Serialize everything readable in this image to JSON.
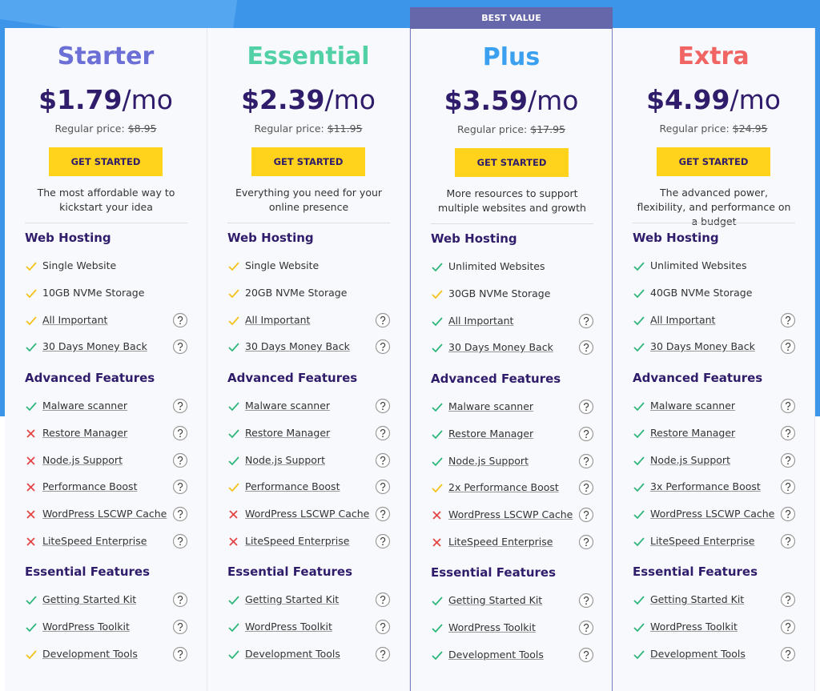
{
  "plans": [
    {
      "name": "Starter",
      "color": "#6b6fd6",
      "price": "$1.79",
      "unit": "/mo",
      "regular_label": "Regular price:",
      "regular_price": "$8.95",
      "button": "GET STARTED",
      "description": "The most affordable way to kickstart your idea",
      "sections": [
        {
          "title": "Web Hosting",
          "items": [
            {
              "text": "Single Website",
              "icon": "yellow-check",
              "help": false
            },
            {
              "text": "10GB NVMe Storage",
              "icon": "yellow-check",
              "help": false
            },
            {
              "text": "All Important",
              "icon": "yellow-check",
              "help": true
            },
            {
              "text": "30 Days Money Back",
              "icon": "green-check",
              "help": true
            }
          ]
        },
        {
          "title": "Advanced Features",
          "items": [
            {
              "text": "Malware scanner",
              "icon": "green-check",
              "help": true
            },
            {
              "text": "Restore Manager",
              "icon": "red-cross",
              "help": true
            },
            {
              "text": "Node.js Support",
              "icon": "red-cross",
              "help": true
            },
            {
              "text": "Performance Boost",
              "icon": "red-cross",
              "help": true
            },
            {
              "text": "WordPress LSCWP Cache",
              "icon": "red-cross",
              "help": true
            },
            {
              "text": "LiteSpeed Enterprise",
              "icon": "red-cross",
              "help": true
            }
          ]
        },
        {
          "title": "Essential Features",
          "items": [
            {
              "text": "Getting Started Kit",
              "icon": "green-check",
              "help": true
            },
            {
              "text": "WordPress Toolkit",
              "icon": "green-check",
              "help": true
            },
            {
              "text": "Development Tools",
              "icon": "yellow-check",
              "help": true
            }
          ]
        }
      ]
    },
    {
      "name": "Essential",
      "color": "#52d1a6",
      "price": "$2.39",
      "unit": "/mo",
      "regular_label": "Regular price:",
      "regular_price": "$11.95",
      "button": "GET STARTED",
      "description": "Everything you need for your online presence",
      "sections": [
        {
          "title": "Web Hosting",
          "items": [
            {
              "text": "Single Website",
              "icon": "yellow-check",
              "help": false
            },
            {
              "text": "20GB NVMe Storage",
              "icon": "yellow-check",
              "help": false
            },
            {
              "text": "All Important",
              "icon": "yellow-check",
              "help": true
            },
            {
              "text": "30 Days Money Back",
              "icon": "green-check",
              "help": true
            }
          ]
        },
        {
          "title": "Advanced Features",
          "items": [
            {
              "text": "Malware scanner",
              "icon": "green-check",
              "help": true
            },
            {
              "text": "Restore Manager",
              "icon": "green-check",
              "help": true
            },
            {
              "text": "Node.js Support",
              "icon": "green-check",
              "help": true
            },
            {
              "text": "Performance Boost",
              "icon": "yellow-check",
              "help": true
            },
            {
              "text": "WordPress LSCWP Cache",
              "icon": "red-cross",
              "help": true
            },
            {
              "text": "LiteSpeed Enterprise",
              "icon": "red-cross",
              "help": true
            }
          ]
        },
        {
          "title": "Essential Features",
          "items": [
            {
              "text": "Getting Started Kit",
              "icon": "green-check",
              "help": true
            },
            {
              "text": "WordPress Toolkit",
              "icon": "green-check",
              "help": true
            },
            {
              "text": "Development Tools",
              "icon": "green-check",
              "help": true
            }
          ]
        }
      ]
    },
    {
      "name": "Plus",
      "color": "#3ba0ef",
      "badge": "BEST VALUE",
      "price": "$3.59",
      "unit": "/mo",
      "regular_label": "Regular price:",
      "regular_price": "$17.95",
      "button": "GET STARTED",
      "description": "More resources to support multiple websites and growth",
      "sections": [
        {
          "title": "Web Hosting",
          "items": [
            {
              "text": "Unlimited Websites",
              "icon": "green-check",
              "help": false
            },
            {
              "text": "30GB NVMe Storage",
              "icon": "yellow-check",
              "help": false
            },
            {
              "text": "All Important",
              "icon": "green-check",
              "help": true
            },
            {
              "text": "30 Days Money Back",
              "icon": "green-check",
              "help": true
            }
          ]
        },
        {
          "title": "Advanced Features",
          "items": [
            {
              "text": "Malware scanner",
              "icon": "green-check",
              "help": true
            },
            {
              "text": "Restore Manager",
              "icon": "green-check",
              "help": true
            },
            {
              "text": "Node.js Support",
              "icon": "green-check",
              "help": true
            },
            {
              "text": "2x Performance Boost",
              "icon": "yellow-check",
              "help": true
            },
            {
              "text": "WordPress LSCWP Cache",
              "icon": "red-cross",
              "help": true
            },
            {
              "text": "LiteSpeed Enterprise",
              "icon": "red-cross",
              "help": true
            }
          ]
        },
        {
          "title": "Essential Features",
          "items": [
            {
              "text": "Getting Started Kit",
              "icon": "green-check",
              "help": true
            },
            {
              "text": "WordPress Toolkit",
              "icon": "green-check",
              "help": true
            },
            {
              "text": "Development Tools",
              "icon": "green-check",
              "help": true
            }
          ]
        }
      ]
    },
    {
      "name": "Extra",
      "color": "#f06464",
      "price": "$4.99",
      "unit": "/mo",
      "regular_label": "Regular price:",
      "regular_price": "$24.95",
      "button": "GET STARTED",
      "description": "The advanced power, flexibility, and performance on a budget",
      "sections": [
        {
          "title": "Web Hosting",
          "items": [
            {
              "text": "Unlimited Websites",
              "icon": "green-check",
              "help": false
            },
            {
              "text": "40GB NVMe Storage",
              "icon": "green-check",
              "help": false
            },
            {
              "text": "All Important",
              "icon": "green-check",
              "help": true
            },
            {
              "text": "30 Days Money Back",
              "icon": "green-check",
              "help": true
            }
          ]
        },
        {
          "title": "Advanced Features",
          "items": [
            {
              "text": "Malware scanner",
              "icon": "green-check",
              "help": true
            },
            {
              "text": "Restore Manager",
              "icon": "green-check",
              "help": true
            },
            {
              "text": "Node.js Support",
              "icon": "green-check",
              "help": true
            },
            {
              "text": "3x Performance Boost",
              "icon": "green-check",
              "help": true
            },
            {
              "text": "WordPress LSCWP Cache",
              "icon": "green-check",
              "help": true
            },
            {
              "text": "LiteSpeed Enterprise",
              "icon": "green-check",
              "help": true
            }
          ]
        },
        {
          "title": "Essential Features",
          "items": [
            {
              "text": "Getting Started Kit",
              "icon": "green-check",
              "help": true
            },
            {
              "text": "WordPress Toolkit",
              "icon": "green-check",
              "help": true
            },
            {
              "text": "Development Tools",
              "icon": "green-check",
              "help": true
            }
          ]
        }
      ]
    }
  ]
}
